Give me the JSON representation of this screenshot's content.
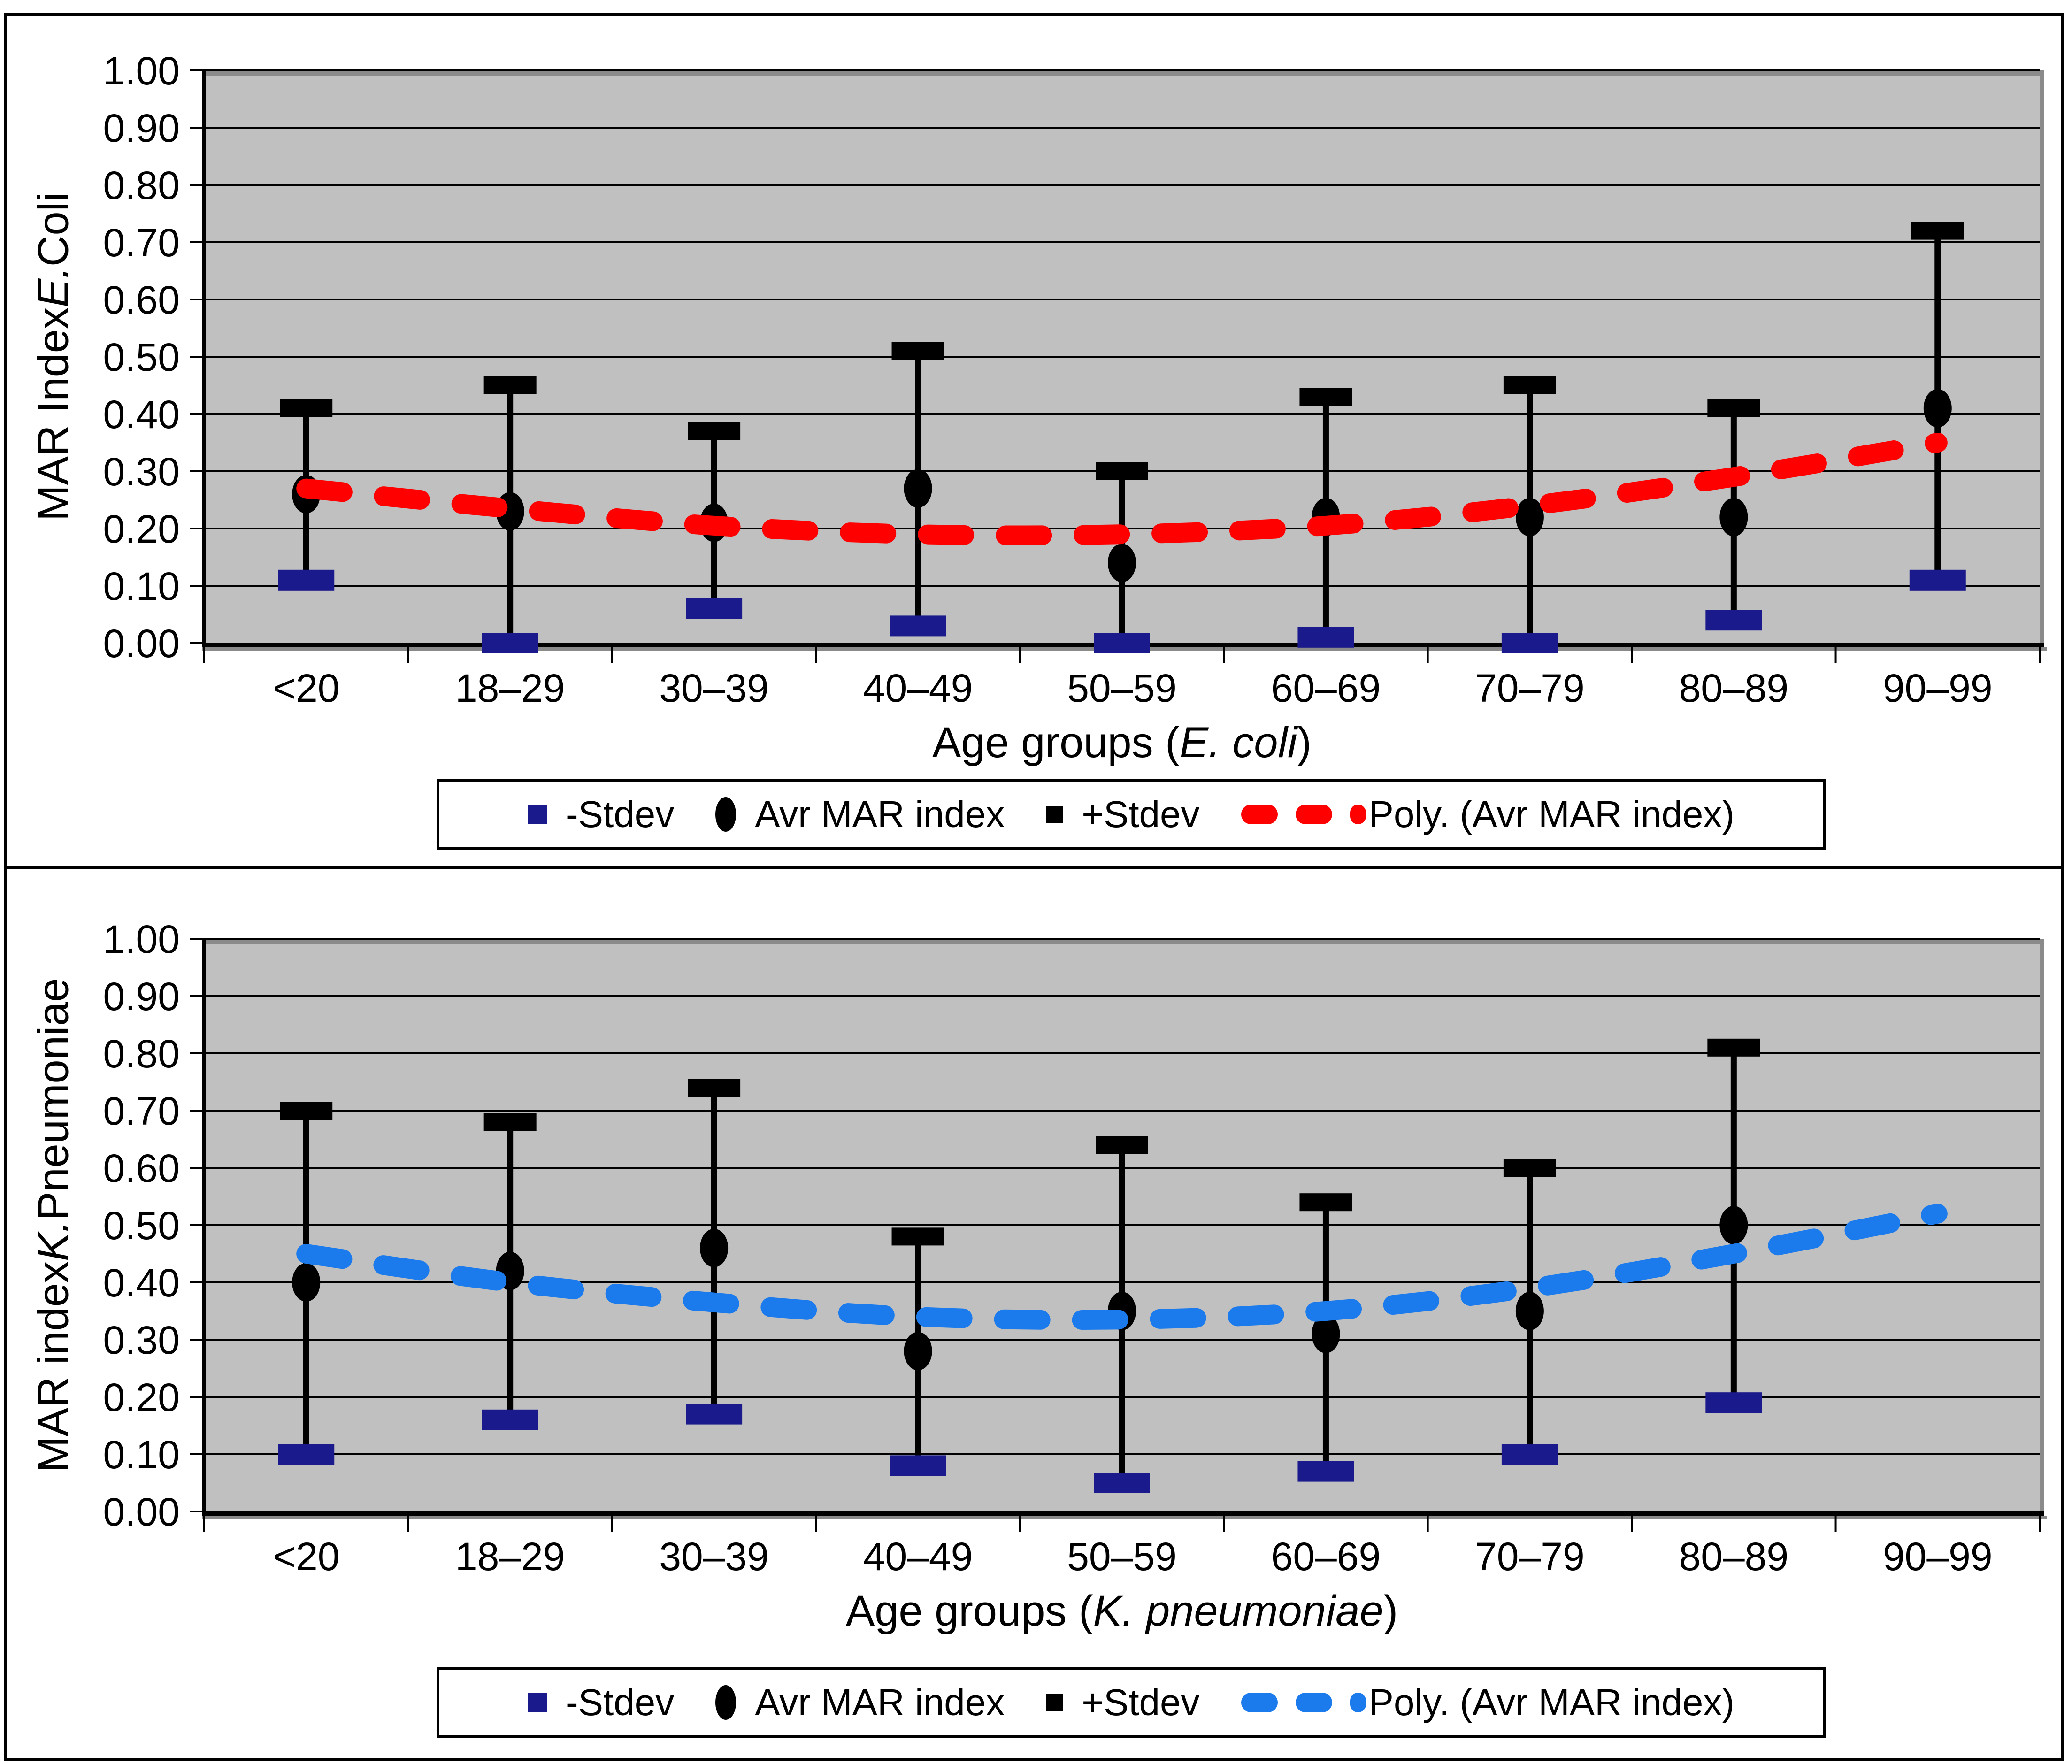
{
  "chart_data": [
    {
      "type": "scatter",
      "title": "",
      "categories": [
        "<20",
        "18–29",
        "30–39",
        "40–49",
        "50–59",
        "60–69",
        "70–79",
        "80–89",
        "90–99"
      ],
      "xlabel": "Age groups (E. coli)",
      "xlabel_parts": [
        {
          "text": "Age groups (",
          "italic": false
        },
        {
          "text": "E. coli",
          "italic": true
        },
        {
          "text": ")",
          "italic": false
        }
      ],
      "ylabel": "MAR Index E. Coli",
      "ylabel_parts": [
        {
          "text": "MAR Index ",
          "italic": false
        },
        {
          "text": "E.",
          "italic": true
        },
        {
          "text": " Coli",
          "italic": false
        }
      ],
      "ylim": [
        0.0,
        1.0
      ],
      "ytick_step": 0.1,
      "ytick_format_decimals": 2,
      "grid": true,
      "legend_position": "bottom",
      "plot_bg": "#C0C0C0",
      "series": [
        {
          "name": "-Stdev",
          "marker": "dash",
          "color": "#1A1A8C",
          "values": [
            0.11,
            0.0,
            0.06,
            0.03,
            0.0,
            0.01,
            0.0,
            0.04,
            0.11
          ]
        },
        {
          "name": "Avr MAR index",
          "marker": "dot",
          "color": "#000000",
          "values": [
            0.26,
            0.23,
            0.21,
            0.27,
            0.14,
            0.22,
            0.22,
            0.22,
            0.41
          ]
        },
        {
          "name": "+Stdev",
          "marker": "dash",
          "color": "#000000",
          "values": [
            0.41,
            0.45,
            0.37,
            0.51,
            0.3,
            0.43,
            0.45,
            0.41,
            0.72
          ]
        },
        {
          "name": "Poly. (Avr MAR index)",
          "marker": "dashed-line",
          "color": "#FF0000",
          "values": [
            0.27,
            0.235,
            0.205,
            0.19,
            0.19,
            0.205,
            0.24,
            0.29,
            0.35
          ]
        }
      ]
    },
    {
      "type": "scatter",
      "title": "",
      "categories": [
        "<20",
        "18–29",
        "30–39",
        "40–49",
        "50–59",
        "60–69",
        "70–79",
        "80–89",
        "90–99"
      ],
      "xlabel": "Age groups (K. pneumoniae)",
      "xlabel_parts": [
        {
          "text": "Age groups (",
          "italic": false
        },
        {
          "text": "K. pneumoniae",
          "italic": true
        },
        {
          "text": ")",
          "italic": false
        }
      ],
      "ylabel": "MAR index K. Pneumoniae",
      "ylabel_parts": [
        {
          "text": "MAR index ",
          "italic": false
        },
        {
          "text": "K.",
          "italic": true
        },
        {
          "text": " Pneumoniae",
          "italic": false
        }
      ],
      "ylim": [
        0.0,
        1.0
      ],
      "ytick_step": 0.1,
      "ytick_format_decimals": 2,
      "grid": true,
      "legend_position": "bottom",
      "plot_bg": "#C0C0C0",
      "series": [
        {
          "name": "-Stdev",
          "marker": "dash",
          "color": "#1A1A8C",
          "values": [
            0.1,
            0.16,
            0.17,
            0.08,
            0.05,
            0.07,
            0.1,
            0.19,
            null
          ]
        },
        {
          "name": "Avr MAR index",
          "marker": "dot",
          "color": "#000000",
          "values": [
            0.4,
            0.42,
            0.46,
            0.28,
            0.35,
            0.31,
            0.35,
            0.5,
            null
          ]
        },
        {
          "name": "+Stdev",
          "marker": "dash",
          "color": "#000000",
          "values": [
            0.7,
            0.68,
            0.74,
            0.48,
            0.64,
            0.54,
            0.6,
            0.81,
            null
          ]
        },
        {
          "name": "Poly. (Avr MAR index)",
          "marker": "dashed-line",
          "color": "#1C7BEC",
          "values": [
            0.45,
            0.4,
            0.365,
            0.34,
            0.335,
            0.35,
            0.39,
            0.45,
            0.52
          ]
        }
      ]
    }
  ]
}
